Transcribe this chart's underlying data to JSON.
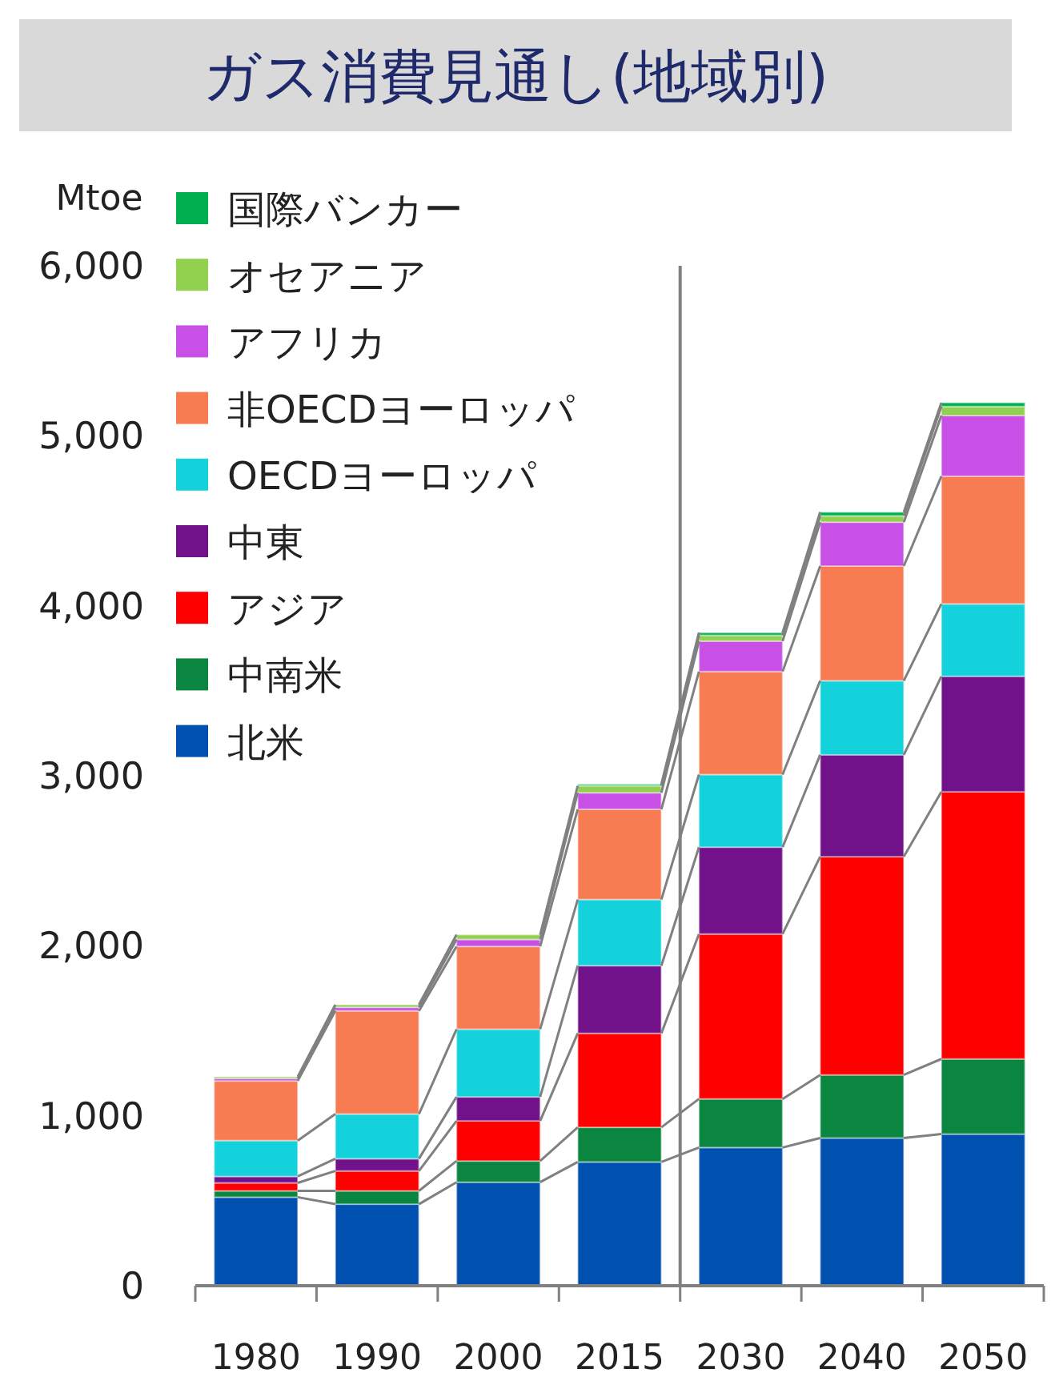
{
  "chart_data": {
    "type": "bar",
    "stacked": true,
    "title": "ガス消費見通し(地域別)",
    "ylabel": "Mtoe",
    "categories": [
      "1980",
      "1990",
      "2000",
      "2015",
      "2030",
      "2040",
      "2050"
    ],
    "series": [
      {
        "name": "北米",
        "color": "#0050b0",
        "values": [
          521,
          480,
          609,
          728,
          813,
          869,
          892
        ]
      },
      {
        "name": "中南米",
        "color": "#0a8640",
        "values": [
          37,
          78,
          125,
          204,
          286,
          371,
          442
        ]
      },
      {
        "name": "アジア",
        "color": "#ff0000",
        "values": [
          47,
          117,
          236,
          553,
          970,
          1284,
          1572
        ]
      },
      {
        "name": "中東",
        "color": "#72128a",
        "values": [
          38,
          72,
          141,
          398,
          511,
          599,
          679
        ]
      },
      {
        "name": "OECDヨーロッパ",
        "color": "#14d2dc",
        "values": [
          211,
          263,
          398,
          389,
          427,
          436,
          426
        ]
      },
      {
        "name": "非OECDヨーロッパ",
        "color": "#f87c52",
        "values": [
          351,
          607,
          487,
          531,
          606,
          675,
          751
        ]
      },
      {
        "name": "アフリカ",
        "color": "#c850e6",
        "values": [
          14,
          21,
          41,
          97,
          179,
          258,
          357
        ]
      },
      {
        "name": "オセアニア",
        "color": "#92d050",
        "values": [
          10,
          15,
          28,
          41,
          34,
          37,
          53
        ]
      },
      {
        "name": "国際バンカー",
        "color": "#00b050",
        "values": [
          0,
          null,
          null,
          9,
          16,
          22,
          23
        ]
      }
    ],
    "ylim": [
      0,
      6000
    ],
    "yticks": [
      {
        "value": 0,
        "label": "0"
      },
      {
        "value": 1000,
        "label": "1,000"
      },
      {
        "value": 2000,
        "label": "2,000"
      },
      {
        "value": 3000,
        "label": "3,000"
      },
      {
        "value": 4000,
        "label": "4,000"
      },
      {
        "value": 5000,
        "label": "5,000"
      },
      {
        "value": 6000,
        "label": "6,000"
      }
    ],
    "legend": "top left",
    "grid": false
  }
}
